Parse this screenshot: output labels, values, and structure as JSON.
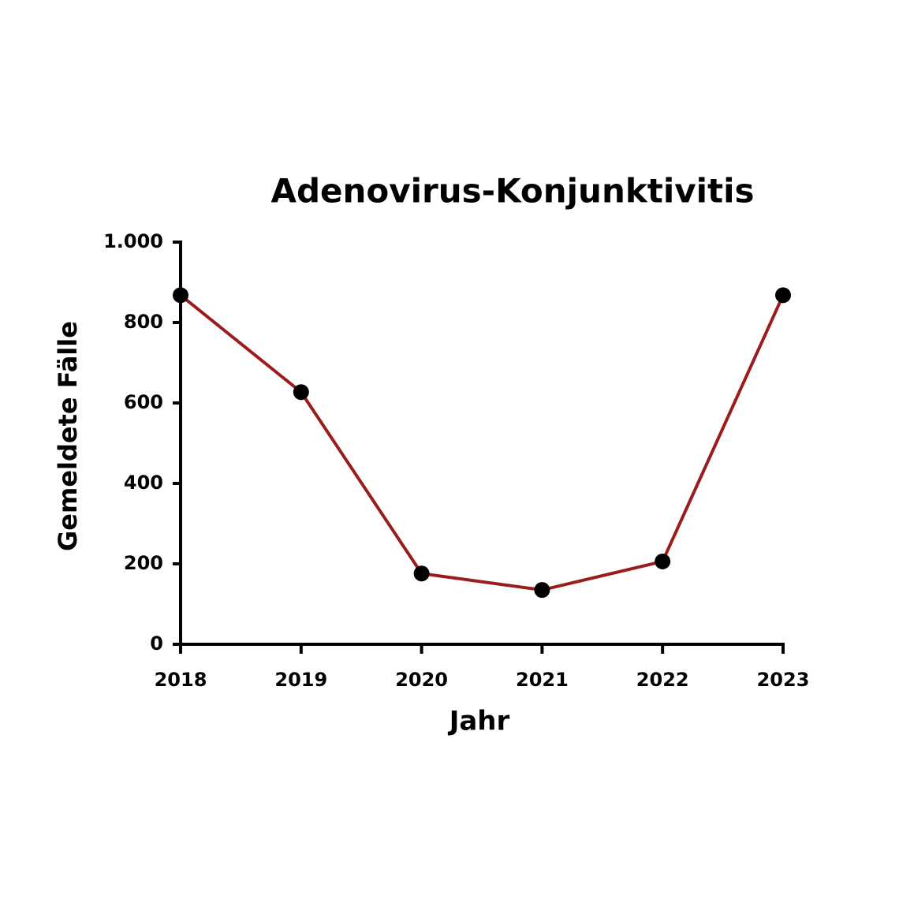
{
  "chart_data": {
    "type": "line",
    "title": "Adenovirus-Konjunktivitis",
    "x_label": "Jahr",
    "y_label": "Gemeldete Fälle",
    "x": [
      2018,
      2019,
      2020,
      2021,
      2022,
      2023
    ],
    "series": [
      {
        "name": "Gemeldete Fälle",
        "color": "#9b1c1c",
        "marker_color": "#000000",
        "values": [
          868,
          627,
          176,
          135,
          206,
          868
        ]
      }
    ],
    "xlim": [
      2018,
      2023
    ],
    "xticks": [
      2018,
      2019,
      2020,
      2021,
      2022,
      2023
    ],
    "ylim": [
      0,
      1000
    ],
    "yticks": [
      0,
      200,
      400,
      600,
      800,
      {
        "value": 1000,
        "label": "1.000"
      }
    ],
    "grid": false
  }
}
